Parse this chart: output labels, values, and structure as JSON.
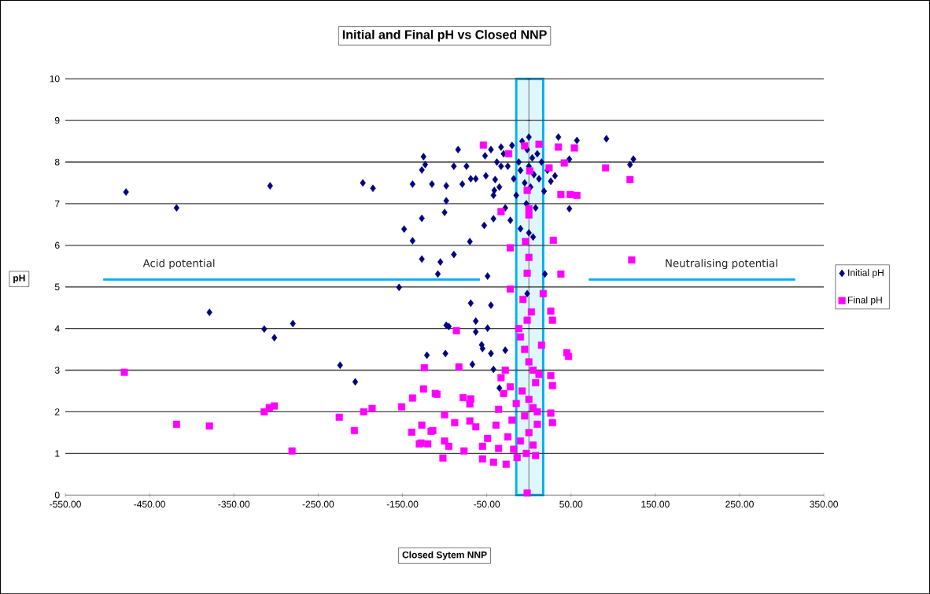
{
  "chart_data": {
    "type": "scatter",
    "title": "Initial and Final pH vs Closed NNP",
    "xlabel": "Closed Sytem NNP",
    "ylabel": "pH",
    "xlim": [
      -550,
      350
    ],
    "ylim": [
      0,
      10
    ],
    "xticks": [
      {
        "value": -550,
        "label": "-550.00"
      },
      {
        "value": -450,
        "label": "-450.00"
      },
      {
        "value": -350,
        "label": "-350.00"
      },
      {
        "value": -250,
        "label": "-250.00"
      },
      {
        "value": -150,
        "label": "-150.00"
      },
      {
        "value": -50,
        "label": "-50.00"
      },
      {
        "value": 50,
        "label": "50.00"
      },
      {
        "value": 150,
        "label": "150.00"
      },
      {
        "value": 250,
        "label": "250.00"
      },
      {
        "value": 350,
        "label": "350.00"
      }
    ],
    "yticks": [
      0,
      1,
      2,
      3,
      4,
      5,
      6,
      7,
      8,
      9,
      10
    ],
    "grid": "y",
    "legend": "right",
    "series": [
      {
        "name": "Initial pH",
        "color": "#000080",
        "marker": "diamond",
        "x": [
          -478,
          -418,
          -307,
          -379,
          -314,
          -302,
          -280,
          -224,
          -206,
          -197,
          -185,
          -138,
          -115,
          -127,
          -148,
          -138,
          -127,
          -108,
          -154,
          -121,
          -84,
          -125,
          -123,
          -127,
          -89,
          -74,
          -98,
          -79,
          -69,
          -63,
          -51,
          -52,
          -40,
          -41,
          -42,
          -98,
          -100,
          -53,
          -42,
          -70,
          -105,
          -89,
          -49,
          -69,
          -45,
          -33,
          -98,
          -95,
          -63,
          -63,
          -49,
          -56,
          -55,
          -45,
          -28,
          -99,
          -67,
          -42,
          -35,
          35,
          57,
          92,
          124,
          120,
          48,
          0,
          19,
          -2,
          26,
          31,
          48,
          -30,
          -25,
          -20,
          -18,
          -15,
          -12,
          -10,
          -8,
          -5,
          -3,
          -2,
          0,
          2,
          4,
          6,
          8,
          10,
          12,
          15,
          18,
          22,
          -28,
          -35,
          -33,
          -22,
          -10,
          5,
          -38,
          -45,
          0
        ],
        "values": [
          7.28,
          6.9,
          7.43,
          4.39,
          3.99,
          3.78,
          4.12,
          3.12,
          2.72,
          7.5,
          7.37,
          7.47,
          7.47,
          6.65,
          6.39,
          6.11,
          5.67,
          5.31,
          4.99,
          3.36,
          8.3,
          8.13,
          7.94,
          7.81,
          7.9,
          7.9,
          7.43,
          7.47,
          7.6,
          7.6,
          7.67,
          8.15,
          7.58,
          7.32,
          7.2,
          7.07,
          6.79,
          6.48,
          6.64,
          6.09,
          5.6,
          5.78,
          5.26,
          4.61,
          4.56,
          8.36,
          4.08,
          4.05,
          4.18,
          3.92,
          4.01,
          3.61,
          3.52,
          3.4,
          3.48,
          3.4,
          3.14,
          3.02,
          2.57,
          8.6,
          8.52,
          8.56,
          8.07,
          7.94,
          6.88,
          8.6,
          5.31,
          4.84,
          7.54,
          7.67,
          8.07,
          8.2,
          7.9,
          8.4,
          7.6,
          7.2,
          8.0,
          7.8,
          8.5,
          7.5,
          7.0,
          8.3,
          7.9,
          7.4,
          8.1,
          7.7,
          6.9,
          8.2,
          7.6,
          8.0,
          7.3,
          7.8,
          6.9,
          7.4,
          7.9,
          6.6,
          6.4,
          6.2,
          8.0,
          8.3,
          6.3
        ]
      },
      {
        "name": "Final pH",
        "color": "#ff00ff",
        "marker": "square",
        "x": [
          -480,
          -418,
          -379,
          -281,
          -314,
          -308,
          -302,
          -225,
          -207,
          -196,
          -186,
          -151,
          -138,
          -125,
          -124,
          -111,
          -139,
          -127,
          -116,
          -130,
          -120,
          -86,
          -83,
          -109,
          -78,
          -69,
          -70,
          -100,
          -88,
          -114,
          -70,
          -63,
          -128,
          -100,
          -95,
          -102,
          -77,
          -55,
          -42,
          -27,
          -49,
          -39,
          -36,
          -33,
          -30,
          -36,
          -55,
          -54,
          -24,
          -33,
          -22,
          -22,
          -5,
          12,
          35,
          54,
          91,
          120,
          1,
          24,
          42,
          38,
          49,
          57,
          -2,
          0,
          0,
          29,
          -4,
          0,
          38,
          -2,
          122,
          17,
          26,
          28,
          -2,
          45,
          47,
          26,
          28,
          26,
          28,
          -2,
          -10,
          -5,
          0,
          5,
          8,
          -8,
          0,
          5,
          -5,
          10,
          0,
          -10,
          5,
          -3,
          12,
          15,
          -12,
          3,
          -7,
          10,
          -15,
          -20,
          -25,
          -18,
          -22,
          -28,
          -14,
          8
        ],
        "values": [
          2.95,
          1.7,
          1.66,
          1.06,
          2.0,
          2.1,
          2.14,
          1.87,
          1.55,
          2.0,
          2.08,
          2.12,
          2.33,
          2.55,
          3.06,
          2.44,
          1.51,
          1.68,
          1.53,
          1.23,
          1.23,
          3.95,
          3.08,
          2.42,
          2.34,
          2.31,
          2.19,
          1.93,
          1.74,
          1.55,
          1.78,
          1.64,
          1.25,
          1.3,
          1.17,
          0.89,
          1.06,
          0.87,
          0.79,
          0.74,
          1.36,
          1.68,
          2.06,
          2.82,
          2.44,
          1.12,
          1.17,
          8.41,
          8.2,
          6.81,
          5.94,
          4.95,
          8.39,
          8.43,
          8.36,
          8.34,
          7.86,
          7.58,
          7.79,
          7.86,
          7.98,
          7.22,
          7.22,
          7.2,
          7.32,
          6.88,
          6.73,
          6.12,
          6.09,
          5.71,
          5.31,
          5.33,
          5.65,
          4.84,
          4.42,
          4.2,
          4.2,
          3.42,
          3.33,
          2.87,
          2.63,
          1.97,
          1.74,
          0.05,
          3.8,
          3.5,
          3.2,
          3.0,
          2.7,
          2.5,
          2.3,
          2.1,
          1.9,
          1.7,
          1.5,
          1.3,
          1.2,
          1.0,
          2.9,
          3.6,
          4.0,
          4.4,
          4.7,
          2.0,
          2.2,
          1.8,
          1.4,
          1.1,
          2.6,
          3.0,
          0.9,
          0.95
        ]
      },
      {
        "type": "line",
        "color": "#00b0f0",
        "x": [
          -505,
          -58
        ],
        "values": [
          5.18,
          5.18
        ]
      },
      {
        "type": "line",
        "color": "#00b0f0",
        "x": [
          71,
          316
        ],
        "values": [
          5.18,
          5.18
        ]
      }
    ],
    "bands": [
      {
        "axis": "x",
        "from": -15,
        "to": 17,
        "color": "#00b0f0"
      }
    ],
    "annotations": [
      "Acid potential",
      "Neutralising potential"
    ]
  }
}
